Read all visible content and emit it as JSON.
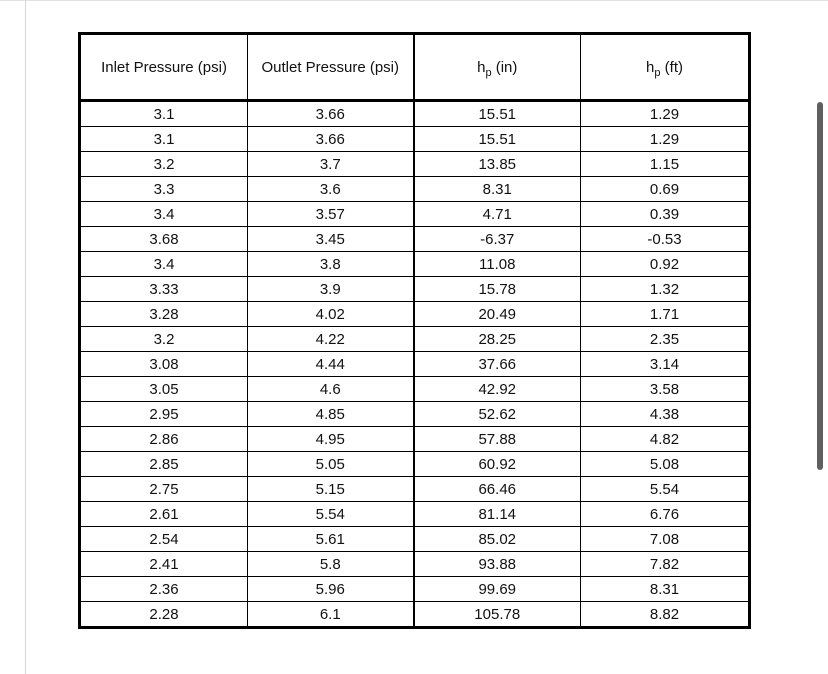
{
  "table": {
    "headers": [
      {
        "pre": "Inlet Pressure (psi)",
        "sub": "",
        "post": ""
      },
      {
        "pre": "Outlet Pressure (psi)",
        "sub": "",
        "post": ""
      },
      {
        "pre": "h",
        "sub": "p",
        "post": " (in)"
      },
      {
        "pre": "h",
        "sub": "p",
        "post": " (ft)"
      }
    ],
    "rows": [
      [
        "3.1",
        "3.66",
        "15.51",
        "1.29"
      ],
      [
        "3.1",
        "3.66",
        "15.51",
        "1.29"
      ],
      [
        "3.2",
        "3.7",
        "13.85",
        "1.15"
      ],
      [
        "3.3",
        "3.6",
        "8.31",
        "0.69"
      ],
      [
        "3.4",
        "3.57",
        "4.71",
        "0.39"
      ],
      [
        "3.68",
        "3.45",
        "-6.37",
        "-0.53"
      ],
      [
        "3.4",
        "3.8",
        "11.08",
        "0.92"
      ],
      [
        "3.33",
        "3.9",
        "15.78",
        "1.32"
      ],
      [
        "3.28",
        "4.02",
        "20.49",
        "1.71"
      ],
      [
        "3.2",
        "4.22",
        "28.25",
        "2.35"
      ],
      [
        "3.08",
        "4.44",
        "37.66",
        "3.14"
      ],
      [
        "3.05",
        "4.6",
        "42.92",
        "3.58"
      ],
      [
        "2.95",
        "4.85",
        "52.62",
        "4.38"
      ],
      [
        "2.86",
        "4.95",
        "57.88",
        "4.82"
      ],
      [
        "2.85",
        "5.05",
        "60.92",
        "5.08"
      ],
      [
        "2.75",
        "5.15",
        "66.46",
        "5.54"
      ],
      [
        "2.61",
        "5.54",
        "81.14",
        "6.76"
      ],
      [
        "2.54",
        "5.61",
        "85.02",
        "7.08"
      ],
      [
        "2.41",
        "5.8",
        "93.88",
        "7.82"
      ],
      [
        "2.36",
        "5.96",
        "99.69",
        "8.31"
      ],
      [
        "2.28",
        "6.1",
        "105.78",
        "8.82"
      ]
    ]
  },
  "colors": {
    "table_border": "#000000",
    "scrollbar_thumb": "#606060",
    "page_background": "#ffffff"
  }
}
